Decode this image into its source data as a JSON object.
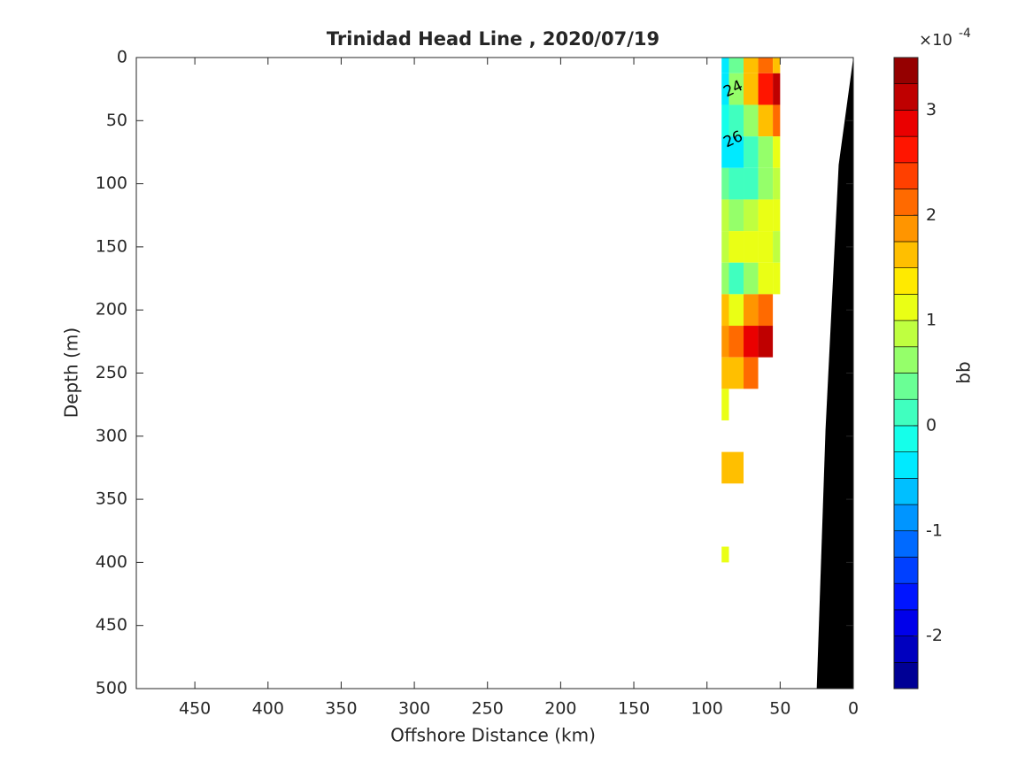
{
  "chart_data": {
    "type": "contourf",
    "title": "Trinidad Head Line , 2020/07/19",
    "xlabel": "Offshore Distance (km)",
    "ylabel": "Depth (m)",
    "xlim": [
      490,
      0
    ],
    "xticks": [
      450,
      400,
      350,
      300,
      250,
      200,
      150,
      100,
      50,
      0
    ],
    "ylim": [
      0,
      500
    ],
    "yticks": [
      0,
      50,
      100,
      150,
      200,
      250,
      300,
      350,
      400,
      450,
      500
    ],
    "x": [
      90,
      80,
      70,
      60,
      50
    ],
    "depth": [
      0,
      25,
      50,
      75,
      100,
      125,
      150,
      175,
      200,
      225,
      250,
      275,
      300,
      325,
      350,
      375,
      400
    ],
    "z": [
      [
        -0.5,
        0.3,
        1.5,
        2.0,
        1.5
      ],
      [
        -0.3,
        0.5,
        1.5,
        2.5,
        3.0
      ],
      [
        -0.2,
        0.0,
        0.5,
        1.5,
        2.0
      ],
      [
        -0.3,
        -0.5,
        0.0,
        0.5,
        1.0
      ],
      [
        0.3,
        0.0,
        0.2,
        0.5,
        0.8
      ],
      [
        0.8,
        0.5,
        0.8,
        1.0,
        1.0
      ],
      [
        0.8,
        1.0,
        1.2,
        1.0,
        0.8
      ],
      [
        0.5,
        0.0,
        0.5,
        1.0,
        1.2
      ],
      [
        1.5,
        1.2,
        1.8,
        2.0,
        null
      ],
      [
        1.8,
        2.0,
        2.8,
        3.0,
        null
      ],
      [
        1.5,
        1.5,
        2.0,
        null,
        null
      ],
      [
        1.2,
        null,
        null,
        null,
        null
      ],
      [
        null,
        null,
        null,
        null,
        null
      ],
      [
        1.5,
        1.5,
        null,
        null,
        null
      ],
      [
        null,
        null,
        null,
        null,
        null
      ],
      [
        null,
        null,
        null,
        null,
        null
      ],
      [
        1.2,
        null,
        null,
        null,
        null
      ]
    ],
    "contour_labels": [
      {
        "text": "24",
        "x": 82,
        "y": 25
      },
      {
        "text": "26",
        "x": 82,
        "y": 65
      }
    ],
    "bathymetry": {
      "x": [
        0,
        10,
        19,
        25
      ],
      "depth": [
        0,
        85,
        295,
        500
      ],
      "color": "#000000"
    },
    "colormap": "jet",
    "clim": [
      -2.5,
      3.5
    ],
    "clevel_step": 0.25,
    "cticks": [
      -2,
      -1,
      0,
      1,
      2,
      3
    ],
    "colorbar_label": "bb",
    "colorbar_scale": {
      "base": "×10",
      "exponent": "-4"
    }
  }
}
